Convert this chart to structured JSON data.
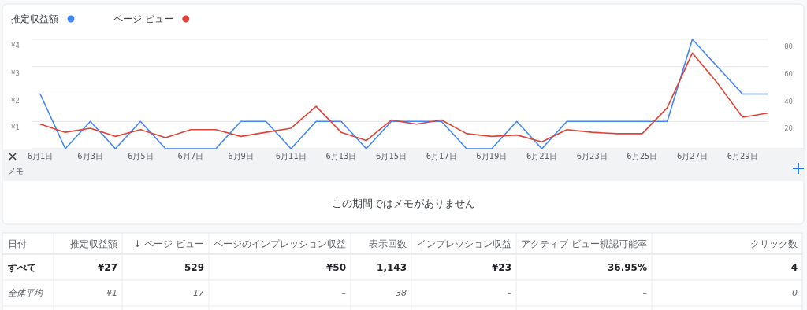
{
  "chart_data": [
    {
      "type": "line",
      "categories": [
        "6月1日",
        null,
        "6月3日",
        null,
        "6月5日",
        null,
        "6月7日",
        null,
        "6月9日",
        null,
        "6月11日",
        null,
        "6月13日",
        null,
        "6月15日",
        null,
        "6月17日",
        null,
        "6月19日",
        null,
        "6月21日",
        null,
        "6月23日",
        null,
        "6月25日",
        null,
        "6月27日",
        null,
        "6月29日",
        null
      ],
      "series": [
        {
          "name": "推定収益額",
          "color": "#4285f4",
          "values": [
            2,
            0,
            1,
            0,
            1,
            0,
            0,
            0,
            1,
            1,
            0,
            1,
            1,
            0,
            1,
            1,
            1,
            0,
            0,
            1,
            0,
            1,
            1,
            1,
            1,
            1,
            4,
            3,
            2,
            2
          ]
        },
        {
          "name": "ページ ビュー",
          "color": "#db4437",
          "axis": "y2",
          "values": [
            18,
            12,
            15,
            9,
            14,
            8,
            14,
            14,
            9,
            12,
            15,
            31,
            12,
            6,
            21,
            18,
            21,
            11,
            9,
            10,
            5,
            14,
            12,
            11,
            11,
            30,
            70,
            48,
            23,
            26
          ]
        }
      ],
      "ylim": [
        0,
        4
      ],
      "yticks": [
        {
          "value": 1,
          "label": "¥1"
        },
        {
          "value": 2,
          "label": "¥2"
        },
        {
          "value": 3,
          "label": "¥3"
        },
        {
          "value": 4,
          "label": "¥4"
        }
      ],
      "y2lim": [
        0,
        80
      ],
      "y2ticks": [
        20,
        40,
        60,
        80
      ],
      "grid": "y",
      "legend": "top left",
      "marker": "none"
    },
    {
      "type": "other",
      "title": "メモ",
      "annotations": [
        "この期間ではメモがありません"
      ]
    },
    {
      "type": "other",
      "annotations": [
        "日付",
        "推定収益額",
        "↓ ページ ビュー",
        "ページのインプレッション収益",
        "表示回数",
        "インプレッション収益",
        "アクティブ ビュー視認可能率",
        "クリック数",
        "すべて",
        "¥27",
        "529",
        "¥50",
        "1,143",
        "¥23",
        "36.95%",
        "4",
        "全体平均",
        "¥1",
        "17",
        "–",
        "38",
        "–",
        "–",
        "0"
      ]
    }
  ]
}
